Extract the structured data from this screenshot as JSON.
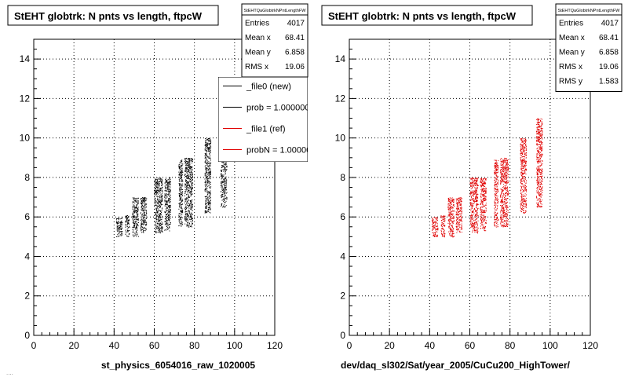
{
  "page": {
    "background": "#ffffff",
    "footer_text": "...."
  },
  "colors": {
    "new": "#000000",
    "ref": "#e00000",
    "frame": "#000000"
  },
  "chart_data": [
    {
      "type": "scatter",
      "title": "StEHT globtrk: N pnts vs length, ftpcW",
      "xlabel": "st_physics_6054016_raw_1020005",
      "ylabel": "",
      "xlim": [
        0,
        120
      ],
      "ylim": [
        0,
        15
      ],
      "xticks": [
        "0",
        "20",
        "40",
        "60",
        "80",
        "100",
        "120"
      ],
      "yticks": [
        "0",
        "2",
        "4",
        "6",
        "8",
        "10",
        "12",
        "14"
      ],
      "grid": true,
      "stats": {
        "name": "StEHTQaGlobtrkNPntLengthFW",
        "rows": [
          {
            "label": "Entries",
            "value": "4017"
          },
          {
            "label": "Mean x",
            "value": "68.41"
          },
          {
            "label": "Mean y",
            "value": "6.858"
          },
          {
            "label": "RMS x",
            "value": "19.06"
          }
        ]
      },
      "legend": {
        "placement": "top-right",
        "entries": [
          {
            "label": "_file0 (new)",
            "color": "#000000"
          },
          {
            "label": "prob = 1.000000",
            "color": "#000000"
          },
          {
            "label": "_file1 (ref)",
            "color": "#e00000"
          },
          {
            "label": "probN = 1.000000",
            "color": "#e00000"
          }
        ]
      },
      "series": [
        {
          "color": "#000000",
          "bands": [
            {
              "x": [
                41,
                44
              ],
              "y": [
                5,
                6
              ]
            },
            {
              "x": [
                45.5,
                47.5
              ],
              "y": [
                5,
                6.1
              ]
            },
            {
              "x": [
                49,
                52
              ],
              "y": [
                5,
                7
              ]
            },
            {
              "x": [
                53,
                56
              ],
              "y": [
                5.2,
                7
              ]
            },
            {
              "x": [
                60,
                64
              ],
              "y": [
                5.2,
                8
              ]
            },
            {
              "x": [
                65,
                68
              ],
              "y": [
                5.3,
                8
              ]
            },
            {
              "x": [
                72,
                74
              ],
              "y": [
                5.5,
                8.9
              ]
            },
            {
              "x": [
                75,
                79
              ],
              "y": [
                5.5,
                9
              ]
            },
            {
              "x": [
                85,
                88
              ],
              "y": [
                6.2,
                10
              ]
            },
            {
              "x": [
                93,
                96
              ],
              "y": [
                6.5,
                11
              ]
            }
          ]
        }
      ]
    },
    {
      "type": "scatter",
      "title": "StEHT globtrk: N pnts vs length, ftpcW",
      "xlabel": "dev/daq_sl302/Sat/year_2005/CuCu200_HighTower/",
      "ylabel": "",
      "xlim": [
        0,
        120
      ],
      "ylim": [
        0,
        15
      ],
      "xticks": [
        "0",
        "20",
        "40",
        "60",
        "80",
        "100",
        "120"
      ],
      "yticks": [
        "0",
        "2",
        "4",
        "6",
        "8",
        "10",
        "12",
        "14"
      ],
      "grid": true,
      "stats": {
        "name": "StEHTQaGlobtrkNPntLengthFW",
        "rows": [
          {
            "label": "Entries",
            "value": "4017"
          },
          {
            "label": "Mean x",
            "value": "68.41"
          },
          {
            "label": "Mean y",
            "value": "6.858"
          },
          {
            "label": "RMS x",
            "value": "19.06"
          },
          {
            "label": "RMS y",
            "value": "1.583"
          }
        ]
      },
      "series": [
        {
          "color": "#e00000",
          "bands": [
            {
              "x": [
                41,
                44
              ],
              "y": [
                5,
                6
              ]
            },
            {
              "x": [
                45.5,
                47.5
              ],
              "y": [
                5,
                6.1
              ]
            },
            {
              "x": [
                49,
                52
              ],
              "y": [
                5,
                7
              ]
            },
            {
              "x": [
                53,
                56
              ],
              "y": [
                5.2,
                7
              ]
            },
            {
              "x": [
                60,
                64
              ],
              "y": [
                5.2,
                8
              ]
            },
            {
              "x": [
                65,
                68
              ],
              "y": [
                5.3,
                8
              ]
            },
            {
              "x": [
                72,
                74
              ],
              "y": [
                5.5,
                8.9
              ]
            },
            {
              "x": [
                75,
                79
              ],
              "y": [
                5.5,
                9
              ]
            },
            {
              "x": [
                85,
                88
              ],
              "y": [
                6.2,
                10
              ]
            },
            {
              "x": [
                93,
                96
              ],
              "y": [
                6.5,
                11
              ]
            }
          ]
        }
      ]
    }
  ]
}
